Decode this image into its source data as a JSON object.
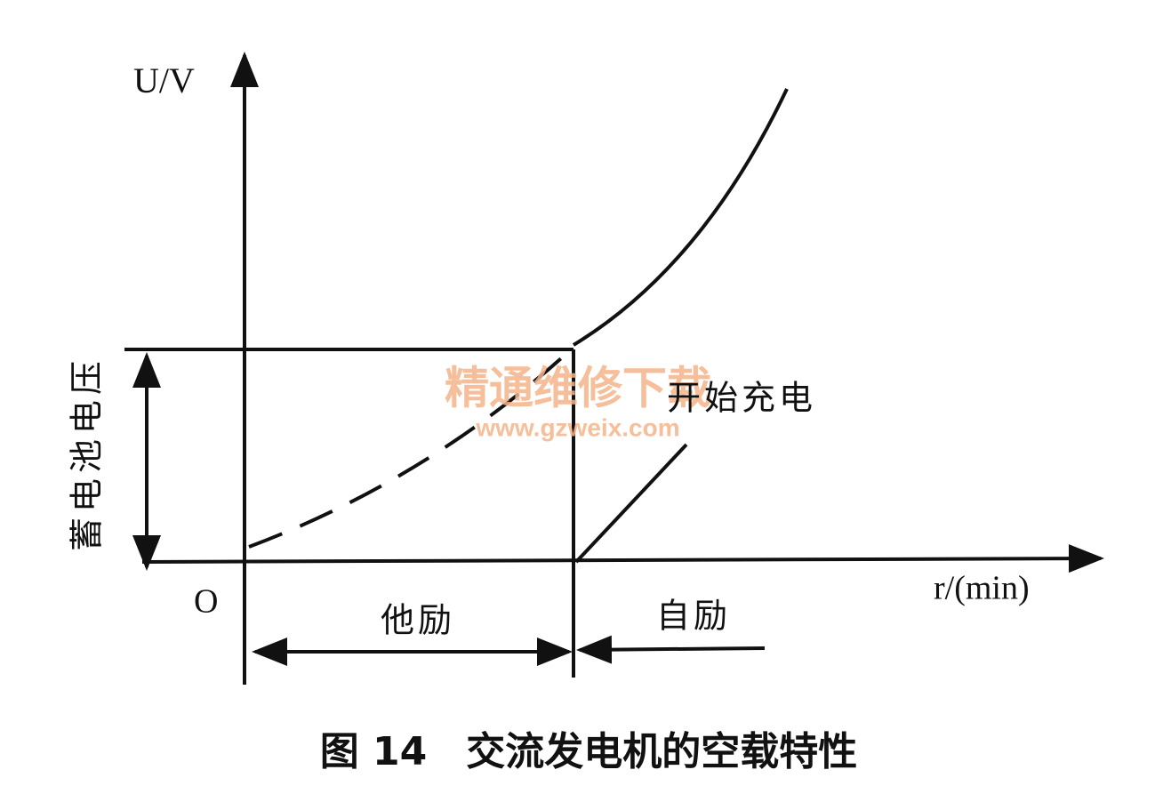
{
  "diagram": {
    "y_axis_label": "U/V",
    "x_axis_label": "r/(min)",
    "origin_label": "O",
    "battery_voltage_label": "蓄电池电压",
    "charge_start_label": "开始充电",
    "separate_excitation_label": "他励",
    "self_excitation_label": "自励",
    "caption": "图 14　交流发电机的空载特性",
    "watermark": {
      "title": "精通维修下载",
      "url": "www.gzweix.com"
    }
  }
}
